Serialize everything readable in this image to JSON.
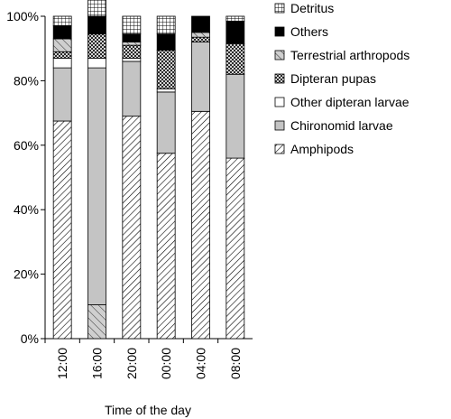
{
  "chart_data": {
    "type": "bar",
    "stacked": true,
    "percent": true,
    "title": "",
    "xlabel": "Time of the day",
    "ylabel": "",
    "ylim": [
      0,
      100
    ],
    "yticks": [
      "0%",
      "20%",
      "40%",
      "60%",
      "80%",
      "100%"
    ],
    "categories": [
      "12:00",
      "16:00",
      "20:00",
      "00:00",
      "04:00",
      "08:00"
    ],
    "legend_position": "right",
    "series": [
      {
        "name": "Amphipods",
        "pattern": "diag-dense",
        "values": [
          67.5,
          0,
          69,
          57.5,
          70.5,
          56
        ]
      },
      {
        "name": "Chironomid larvae",
        "pattern": "solid-gray",
        "values": [
          16.5,
          73.5,
          17,
          19,
          21.5,
          26
        ]
      },
      {
        "name": "Other dipteran larvae",
        "pattern": "white",
        "values": [
          3,
          3,
          1,
          1,
          0,
          0
        ]
      },
      {
        "name": "Dipteran pupas",
        "pattern": "crosshatch",
        "values": [
          2,
          7.5,
          4,
          12,
          1.5,
          9.5
        ]
      },
      {
        "name": "Terrestrial arthropods",
        "pattern": "diag-sparse",
        "values": [
          4,
          0,
          1,
          0,
          1.5,
          0
        ]
      },
      {
        "name": "Others",
        "pattern": "solid-black",
        "values": [
          4,
          5.5,
          2.5,
          5,
          5,
          7
        ]
      },
      {
        "name": "Detritus",
        "pattern": "grid",
        "values": [
          3,
          10.5,
          5.5,
          5.5,
          0,
          1.5
        ]
      }
    ],
    "bottom_segments_16": [
      {
        "series": "Amphipods-alt",
        "pattern": "diag-sparse",
        "value": 10.5
      }
    ]
  }
}
